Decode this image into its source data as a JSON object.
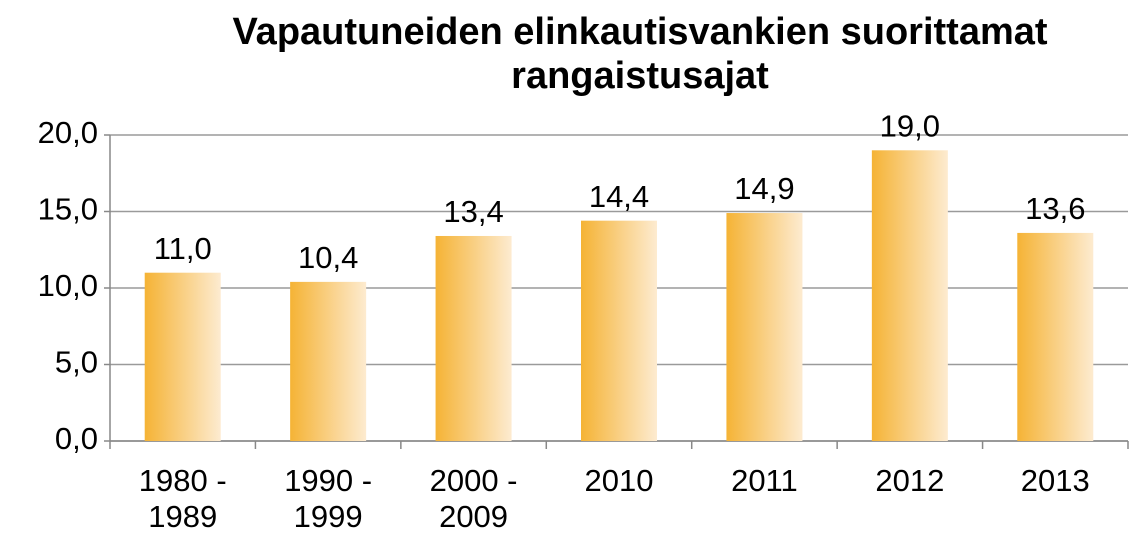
{
  "chart_data": {
    "type": "bar",
    "title": "Vapautuneiden elinkautisvankien suorittamat rangaistusajat",
    "categories": [
      "1980 - 1989",
      "1990 - 1999",
      "2000 - 2009",
      "2010",
      "2011",
      "2012",
      "2013"
    ],
    "values": [
      11.0,
      10.4,
      13.4,
      14.4,
      14.9,
      19.0,
      13.6
    ],
    "value_labels": [
      "11,0",
      "10,4",
      "13,4",
      "14,4",
      "14,9",
      "19,0",
      "13,6"
    ],
    "color": "#f5b335",
    "ylim": [
      0,
      20
    ],
    "yticks": [
      {
        "value": 0,
        "label": "0,0"
      },
      {
        "value": 5,
        "label": "5,0"
      },
      {
        "value": 10,
        "label": "10,0"
      },
      {
        "value": 15,
        "label": "15,0"
      },
      {
        "value": 20,
        "label": "20,0"
      }
    ],
    "grid": true
  }
}
